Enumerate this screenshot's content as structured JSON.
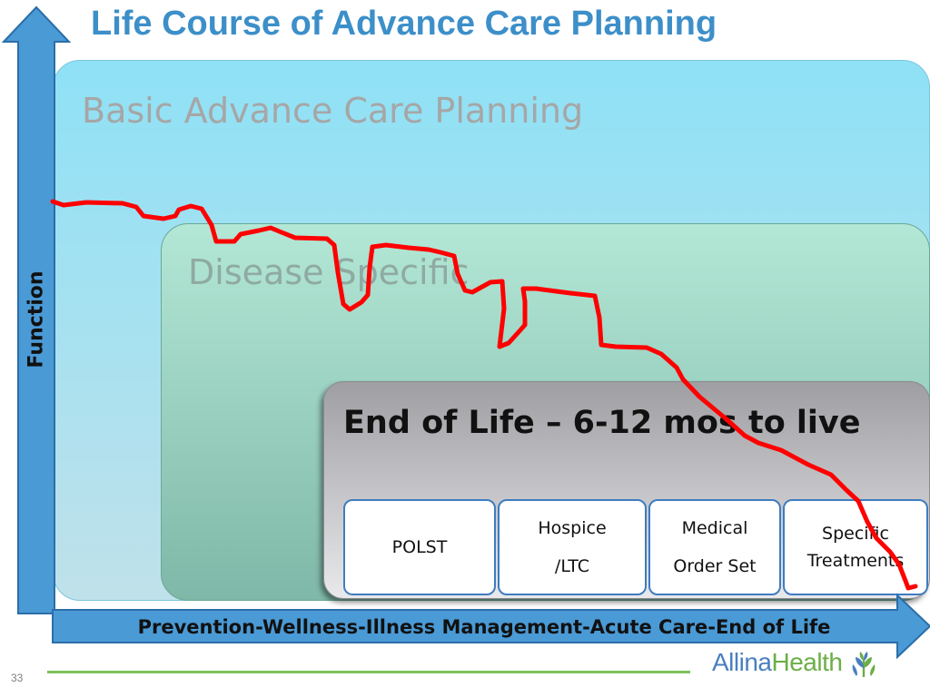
{
  "title": "Life Course of Advance Care Planning",
  "colors": {
    "title": "#3c8fc9",
    "arrow": "#4a9ad6",
    "arrow_border": "#2b6ea8",
    "basic_top": "#8fe1f6",
    "basic_bottom": "#bfe1ea",
    "disease_top": "#b3e7d6",
    "disease_bottom": "#7fb8a8",
    "eol_top": "#9f9fa3",
    "eol_bottom": "#e9e9ec",
    "curve": "#ff0000",
    "card_border": "#3f7cc0"
  },
  "y_axis": {
    "label": "Function",
    "icon": "arrow-up-icon"
  },
  "x_axis": {
    "label": "Prevention-Wellness-Illness Management-Acute Care-End of Life",
    "icon": "arrow-right-icon"
  },
  "panels": {
    "basic": "Basic Advance Care Planning",
    "disease": "Disease Specific",
    "eol": "End of Life – 6-12 mos to live"
  },
  "cards": [
    {
      "lines": [
        "POLST"
      ]
    },
    {
      "lines": [
        "Hospice",
        "/LTC"
      ]
    },
    {
      "lines": [
        "Medical",
        "Order Set"
      ]
    },
    {
      "lines": [
        "Specific",
        "Treatments"
      ]
    }
  ],
  "curve_icon": "function-decline-curve",
  "footer": {
    "page_number": "33",
    "logo_part1": "Allina",
    "logo_part2": "Health",
    "logo_icon": "allina-wheat-icon"
  }
}
